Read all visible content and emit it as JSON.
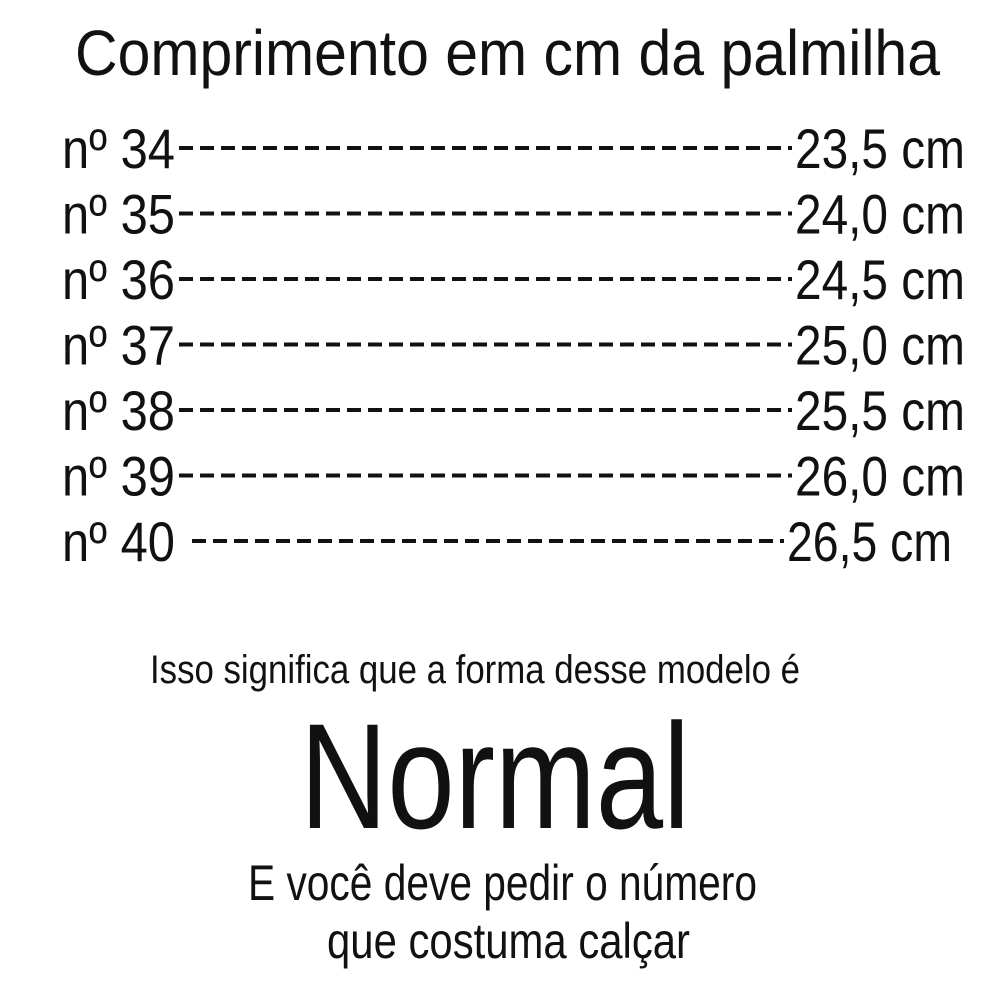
{
  "header": {
    "title": "Comprimento em cm da palmilha"
  },
  "table": {
    "rows": [
      {
        "size": "nº 34",
        "length": "23,5 cm"
      },
      {
        "size": "nº 35",
        "length": "24,0 cm"
      },
      {
        "size": "nº 36",
        "length": "24,5 cm"
      },
      {
        "size": "nº 37",
        "length": "25,0 cm"
      },
      {
        "size": "nº 38",
        "length": "25,5 cm"
      },
      {
        "size": "nº 39",
        "length": "26,0 cm"
      },
      {
        "size": "nº 40",
        "length": "26,5 cm"
      }
    ]
  },
  "footer": {
    "intro": "Isso significa que a forma desse modelo é",
    "fit": "Normal",
    "lines": [
      "E você deve pedir o número",
      "que costuma calçar"
    ]
  }
}
